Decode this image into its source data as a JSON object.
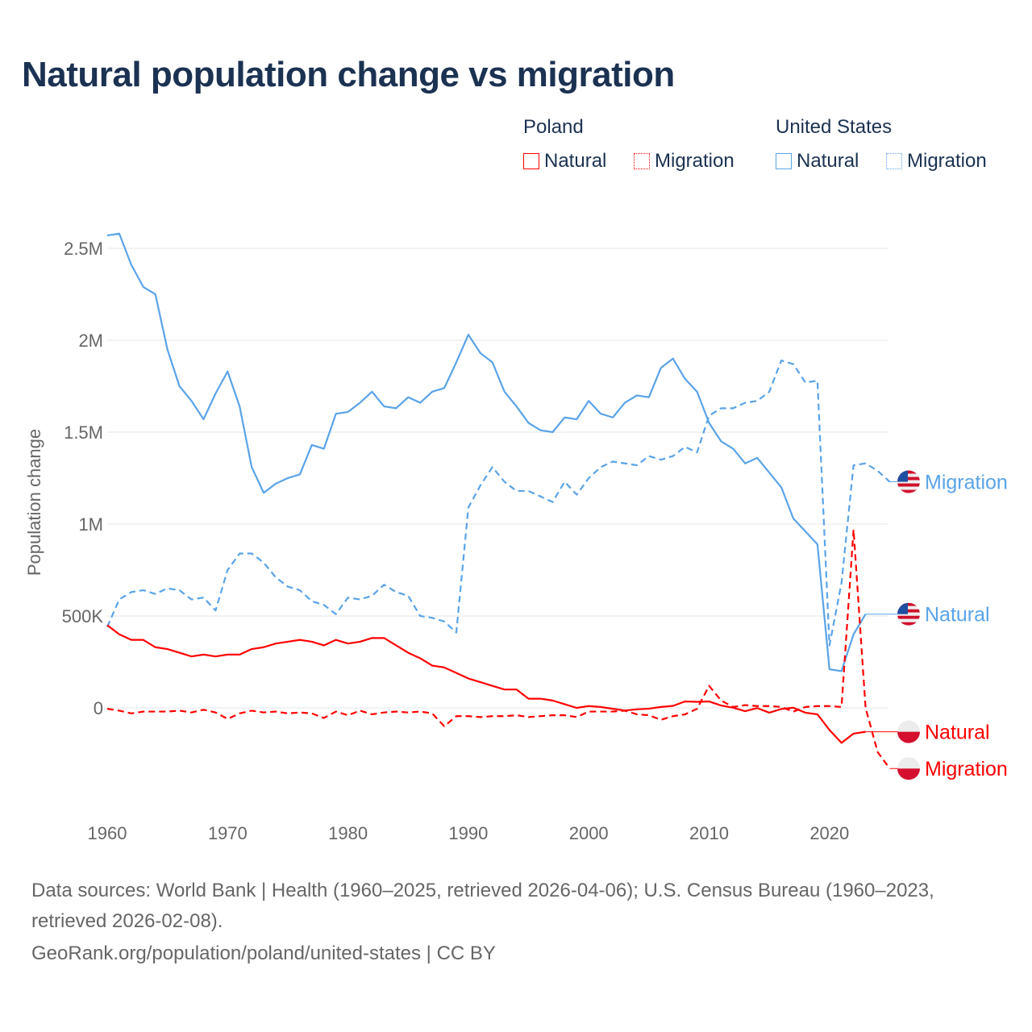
{
  "title": "Natural population change vs migration",
  "legend": {
    "groups": [
      {
        "name": "Poland",
        "items": [
          "Natural",
          "Migration"
        ],
        "color": "#ff0000"
      },
      {
        "name": "United States",
        "items": [
          "Natural",
          "Migration"
        ],
        "color": "#5aa3e8"
      }
    ]
  },
  "footer": {
    "line1": "Data sources: World Bank | Health (1960–2025, retrieved 2026-04-06); U.S. Census Bureau (1960–2023,",
    "line2": "retrieved 2026-02-08).",
    "line3": "GeoRank.org/population/poland/united-states | CC BY"
  },
  "chart_data": {
    "type": "line",
    "title": "Natural population change vs migration",
    "xlabel": "",
    "ylabel": "Population change",
    "xlim": [
      1960,
      2025
    ],
    "ylim": [
      -500000,
      2700000
    ],
    "x_ticks": [
      1960,
      1970,
      1980,
      1990,
      2000,
      2010,
      2020
    ],
    "x_tick_labels": [
      "1960",
      "1970",
      "1980",
      "1990",
      "2000",
      "2010",
      "2020"
    ],
    "y_ticks": [
      0,
      500000,
      1000000,
      1500000,
      2000000,
      2500000
    ],
    "y_tick_labels": [
      "0",
      "500K",
      "1M",
      "1.5M",
      "2M",
      "2.5M"
    ],
    "grid": true,
    "legend_position": "top-right",
    "series": [
      {
        "name": "United States Natural",
        "label": "Natural",
        "color": "#5aa3e8",
        "dash": false,
        "start": 1960,
        "values": [
          2.57,
          2.58,
          2.41,
          2.29,
          2.25,
          1.95,
          1.75,
          1.67,
          1.57,
          1.71,
          1.83,
          1.64,
          1.31,
          1.17,
          1.22,
          1.25,
          1.27,
          1.43,
          1.41,
          1.6,
          1.61,
          1.66,
          1.72,
          1.64,
          1.63,
          1.69,
          1.66,
          1.72,
          1.74,
          1.88,
          2.03,
          1.93,
          1.88,
          1.72,
          1.64,
          1.55,
          1.51,
          1.5,
          1.58,
          1.57,
          1.67,
          1.6,
          1.58,
          1.66,
          1.7,
          1.69,
          1.85,
          1.9,
          1.79,
          1.72,
          1.55,
          1.45,
          1.41,
          1.33,
          1.36,
          1.28,
          1.2,
          1.03,
          0.96,
          0.89,
          0.21,
          0.2,
          0.4,
          0.51
        ]
      },
      {
        "name": "United States Migration",
        "label": "Migration",
        "color": "#5aa3e8",
        "dash": true,
        "start": 1960,
        "values": [
          0.44,
          0.59,
          0.63,
          0.64,
          0.62,
          0.65,
          0.64,
          0.59,
          0.6,
          0.53,
          0.75,
          0.84,
          0.84,
          0.79,
          0.71,
          0.66,
          0.64,
          0.58,
          0.56,
          0.51,
          0.6,
          0.59,
          0.61,
          0.67,
          0.63,
          0.61,
          0.5,
          0.49,
          0.47,
          0.41,
          1.09,
          1.21,
          1.31,
          1.23,
          1.18,
          1.18,
          1.15,
          1.12,
          1.23,
          1.16,
          1.25,
          1.31,
          1.34,
          1.33,
          1.32,
          1.37,
          1.35,
          1.37,
          1.42,
          1.39,
          1.59,
          1.63,
          1.63,
          1.66,
          1.67,
          1.72,
          1.89,
          1.87,
          1.77,
          1.78,
          0.34,
          0.68,
          1.32,
          1.33,
          1.29,
          1.23
        ]
      },
      {
        "name": "Poland Natural",
        "label": "Natural",
        "color": "#ff0000",
        "dash": false,
        "start": 1960,
        "values": [
          0.45,
          0.4,
          0.37,
          0.37,
          0.33,
          0.32,
          0.3,
          0.28,
          0.29,
          0.28,
          0.29,
          0.29,
          0.32,
          0.33,
          0.35,
          0.36,
          0.37,
          0.36,
          0.34,
          0.37,
          0.35,
          0.36,
          0.38,
          0.38,
          0.34,
          0.3,
          0.27,
          0.23,
          0.22,
          0.19,
          0.16,
          0.14,
          0.12,
          0.1,
          0.1,
          0.05,
          0.05,
          0.04,
          0.02,
          0.0,
          0.01,
          0.005,
          -0.005,
          -0.014,
          -0.008,
          -0.004,
          0.005,
          0.011,
          0.035,
          0.033,
          0.035,
          0.013,
          0.001,
          -0.018,
          -0.001,
          -0.026,
          -0.006,
          0.001,
          -0.026,
          -0.035,
          -0.12,
          -0.19,
          -0.14,
          -0.13
        ]
      },
      {
        "name": "Poland Migration",
        "label": "Migration",
        "color": "#ff0000",
        "dash": true,
        "start": 1960,
        "values": [
          -0.005,
          -0.015,
          -0.03,
          -0.02,
          -0.02,
          -0.02,
          -0.015,
          -0.025,
          -0.01,
          -0.025,
          -0.06,
          -0.03,
          -0.015,
          -0.025,
          -0.02,
          -0.03,
          -0.025,
          -0.03,
          -0.055,
          -0.02,
          -0.04,
          -0.015,
          -0.035,
          -0.025,
          -0.02,
          -0.025,
          -0.02,
          -0.03,
          -0.1,
          -0.045,
          -0.045,
          -0.05,
          -0.045,
          -0.045,
          -0.04,
          -0.05,
          -0.045,
          -0.04,
          -0.04,
          -0.05,
          -0.02,
          -0.02,
          -0.02,
          -0.015,
          -0.035,
          -0.04,
          -0.065,
          -0.045,
          -0.035,
          -0.005,
          0.12,
          0.04,
          0.005,
          0.015,
          0.01,
          0.01,
          0.005,
          -0.02,
          0.005,
          0.01,
          0.01,
          0.005,
          0.97,
          0.0,
          -0.24,
          -0.33
        ]
      }
    ],
    "value_unit": "millions"
  }
}
